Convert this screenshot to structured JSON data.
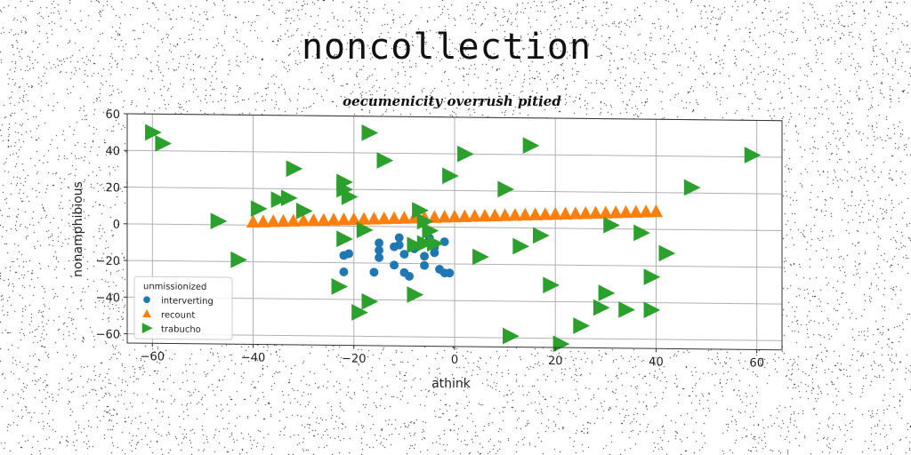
{
  "page_title": "noncollection",
  "chart_data": {
    "type": "scatter",
    "title": "oecumenicity overrush pitied",
    "xlabel": "athink",
    "ylabel": "nonamphibious",
    "xlim": [
      -65,
      65
    ],
    "ylim": [
      -65,
      60
    ],
    "xticks": [
      -60,
      -40,
      -20,
      0,
      20,
      40,
      60
    ],
    "yticks": [
      -60,
      -40,
      -20,
      0,
      20,
      40,
      60
    ],
    "xtick_labels": [
      "−60",
      "−40",
      "−20",
      "0",
      "20",
      "40",
      "60"
    ],
    "ytick_labels": [
      "−60",
      "−40",
      "−20",
      "0",
      "20",
      "40",
      "60"
    ],
    "grid": true,
    "legend_placement": "lower-left",
    "legend_title": "unmissionized",
    "series": [
      {
        "name": "interverting",
        "marker": "circle",
        "color": "#1f77b4",
        "points": [
          [
            -22,
            -16
          ],
          [
            -21,
            -15
          ],
          [
            -22,
            -25
          ],
          [
            -16,
            -25
          ],
          [
            -15,
            -17
          ],
          [
            -15,
            -13
          ],
          [
            -15,
            -9
          ],
          [
            -12,
            -11
          ],
          [
            -11,
            -6
          ],
          [
            -11,
            -10
          ],
          [
            -10,
            -15
          ],
          [
            -12,
            -21
          ],
          [
            -10,
            -25
          ],
          [
            -9,
            -27
          ],
          [
            -8,
            -12
          ],
          [
            -7,
            -10
          ],
          [
            -6,
            -16
          ],
          [
            -5,
            -6
          ],
          [
            -5,
            -9
          ],
          [
            -4,
            -11
          ],
          [
            -4,
            -14
          ],
          [
            -3,
            -23
          ],
          [
            -2,
            -25
          ],
          [
            -1,
            -25
          ],
          [
            -6,
            -21
          ],
          [
            -2,
            -8
          ]
        ]
      },
      {
        "name": "recount",
        "marker": "triangle-up",
        "color": "#ff7f0e",
        "points": [
          [
            -40,
            1.6
          ],
          [
            -38,
            1.8
          ],
          [
            -36,
            2.0
          ],
          [
            -34,
            2.2
          ],
          [
            -32,
            2.4
          ],
          [
            -30,
            2.6
          ],
          [
            -28,
            2.8
          ],
          [
            -26,
            3.0
          ],
          [
            -24,
            3.2
          ],
          [
            -22,
            3.4
          ],
          [
            -20,
            3.6
          ],
          [
            -18,
            3.8
          ],
          [
            -16,
            4.0
          ],
          [
            -14,
            4.2
          ],
          [
            -12,
            4.4
          ],
          [
            -10,
            4.6
          ],
          [
            -8,
            4.8
          ],
          [
            -6,
            5.0
          ],
          [
            -4,
            5.2
          ],
          [
            -2,
            5.4
          ],
          [
            0,
            5.6
          ],
          [
            2,
            5.8
          ],
          [
            4,
            6.0
          ],
          [
            6,
            6.2
          ],
          [
            8,
            6.4
          ],
          [
            10,
            6.6
          ],
          [
            12,
            6.8
          ],
          [
            14,
            7.0
          ],
          [
            16,
            7.2
          ],
          [
            18,
            7.4
          ],
          [
            20,
            7.6
          ],
          [
            22,
            7.8
          ],
          [
            24,
            8.0
          ],
          [
            26,
            8.2
          ],
          [
            28,
            8.4
          ],
          [
            30,
            8.6
          ],
          [
            32,
            8.8
          ],
          [
            34,
            9.0
          ],
          [
            36,
            9.2
          ],
          [
            38,
            9.4
          ],
          [
            40,
            9.6
          ]
        ]
      },
      {
        "name": "trabucho",
        "marker": "triangle-right",
        "color": "#2ca02c",
        "points": [
          [
            -60,
            50
          ],
          [
            -58,
            44
          ],
          [
            -47,
            2
          ],
          [
            -43,
            -19
          ],
          [
            -39,
            9
          ],
          [
            -35,
            14
          ],
          [
            -33,
            15
          ],
          [
            -32,
            31
          ],
          [
            -30,
            8
          ],
          [
            -23,
            -33
          ],
          [
            -22,
            -7
          ],
          [
            -22,
            20
          ],
          [
            -22,
            24
          ],
          [
            -21,
            16
          ],
          [
            -19,
            -47
          ],
          [
            -18,
            -2
          ],
          [
            -17,
            -41
          ],
          [
            -17,
            51
          ],
          [
            -14,
            36
          ],
          [
            -8,
            -37
          ],
          [
            -8,
            -10
          ],
          [
            -7,
            9
          ],
          [
            -6,
            3
          ],
          [
            -6,
            -9
          ],
          [
            -5,
            -2
          ],
          [
            -4,
            -9
          ],
          [
            -1,
            28
          ],
          [
            2,
            40
          ],
          [
            5,
            -16
          ],
          [
            10,
            21
          ],
          [
            11,
            -59
          ],
          [
            13,
            -10
          ],
          [
            15,
            45
          ],
          [
            17,
            -4
          ],
          [
            19,
            -31
          ],
          [
            21,
            -63
          ],
          [
            25,
            -53
          ],
          [
            29,
            -43
          ],
          [
            30,
            -35
          ],
          [
            31,
            2
          ],
          [
            34,
            -44
          ],
          [
            37,
            -2
          ],
          [
            39,
            -26
          ],
          [
            39,
            -44
          ],
          [
            42,
            -13
          ],
          [
            47,
            23
          ],
          [
            59,
            41
          ]
        ]
      }
    ]
  }
}
